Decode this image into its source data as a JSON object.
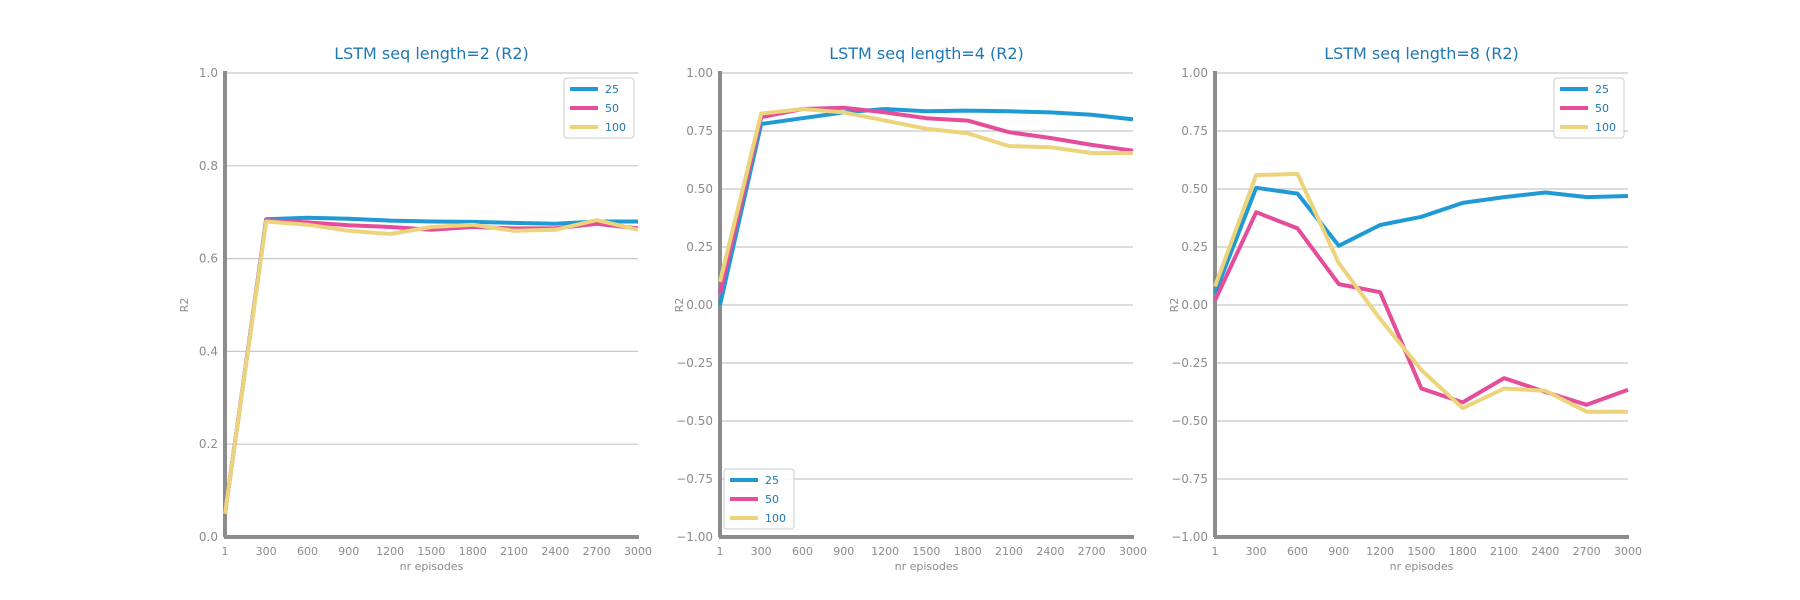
{
  "chart_data": [
    {
      "type": "line",
      "title": "LSTM seq length=2 (R2)",
      "xlabel": "nr episodes",
      "ylabel": "R2",
      "x": [
        1,
        300,
        600,
        900,
        1200,
        1500,
        1800,
        2100,
        2400,
        2700,
        3000
      ],
      "xticks": [
        "1",
        "300",
        "600",
        "900",
        "1200",
        "1500",
        "1800",
        "2100",
        "2400",
        "2700",
        "3000"
      ],
      "ylim": [
        0.0,
        1.0
      ],
      "yticks": [
        "0.0",
        "0.2",
        "0.4",
        "0.6",
        "0.8",
        "1.0"
      ],
      "grid": true,
      "legend": "top-right",
      "series": [
        {
          "name": "25",
          "color": "#1f9ad4",
          "values": [
            0.05,
            0.685,
            0.688,
            0.686,
            0.682,
            0.68,
            0.679,
            0.677,
            0.675,
            0.68,
            0.68
          ]
        },
        {
          "name": "50",
          "color": "#e54d9a",
          "values": [
            0.05,
            0.683,
            0.678,
            0.672,
            0.668,
            0.662,
            0.668,
            0.665,
            0.665,
            0.675,
            0.665
          ]
        },
        {
          "name": "100",
          "color": "#ecd47c",
          "values": [
            0.05,
            0.68,
            0.673,
            0.66,
            0.653,
            0.668,
            0.673,
            0.66,
            0.662,
            0.683,
            0.662
          ]
        }
      ]
    },
    {
      "type": "line",
      "title": "LSTM seq length=4 (R2)",
      "xlabel": "nr episodes",
      "ylabel": "R2",
      "x": [
        1,
        300,
        600,
        900,
        1200,
        1500,
        1800,
        2100,
        2400,
        2700,
        3000
      ],
      "xticks": [
        "1",
        "300",
        "600",
        "900",
        "1200",
        "1500",
        "1800",
        "2100",
        "2400",
        "2700",
        "3000"
      ],
      "ylim": [
        -1.0,
        1.0
      ],
      "yticks": [
        "−1.00",
        "−0.75",
        "−0.50",
        "−0.25",
        "0.00",
        "0.25",
        "0.50",
        "0.75",
        "1.00"
      ],
      "grid": true,
      "legend": "bottom-left",
      "series": [
        {
          "name": "25",
          "color": "#1f9ad4",
          "values": [
            0.0,
            0.78,
            0.805,
            0.83,
            0.845,
            0.835,
            0.838,
            0.835,
            0.83,
            0.82,
            0.8
          ]
        },
        {
          "name": "50",
          "color": "#e54d9a",
          "values": [
            0.05,
            0.81,
            0.845,
            0.85,
            0.83,
            0.805,
            0.795,
            0.745,
            0.72,
            0.69,
            0.665
          ]
        },
        {
          "name": "100",
          "color": "#ecd47c",
          "values": [
            0.1,
            0.825,
            0.845,
            0.83,
            0.795,
            0.76,
            0.74,
            0.685,
            0.68,
            0.655,
            0.655
          ]
        }
      ]
    },
    {
      "type": "line",
      "title": "LSTM seq length=8 (R2)",
      "xlabel": "nr episodes",
      "ylabel": "R2",
      "x": [
        1,
        300,
        600,
        900,
        1200,
        1500,
        1800,
        2100,
        2400,
        2700,
        3000
      ],
      "xticks": [
        "1",
        "300",
        "600",
        "900",
        "1200",
        "1500",
        "1800",
        "2100",
        "2400",
        "2700",
        "3000"
      ],
      "ylim": [
        -1.0,
        1.0
      ],
      "yticks": [
        "−1.00",
        "−0.75",
        "−0.50",
        "−0.25",
        "0.00",
        "0.25",
        "0.50",
        "0.75",
        "1.00"
      ],
      "grid": true,
      "legend": "top-right",
      "series": [
        {
          "name": "25",
          "color": "#1f9ad4",
          "values": [
            0.05,
            0.505,
            0.48,
            0.255,
            0.345,
            0.38,
            0.44,
            0.465,
            0.485,
            0.465,
            0.47
          ]
        },
        {
          "name": "50",
          "color": "#e54d9a",
          "values": [
            0.02,
            0.4,
            0.33,
            0.09,
            0.055,
            -0.36,
            -0.42,
            -0.315,
            -0.375,
            -0.43,
            -0.365
          ]
        },
        {
          "name": "100",
          "color": "#ecd47c",
          "values": [
            0.08,
            0.56,
            0.565,
            0.18,
            -0.06,
            -0.28,
            -0.445,
            -0.36,
            -0.37,
            -0.46,
            -0.46
          ]
        }
      ]
    }
  ]
}
